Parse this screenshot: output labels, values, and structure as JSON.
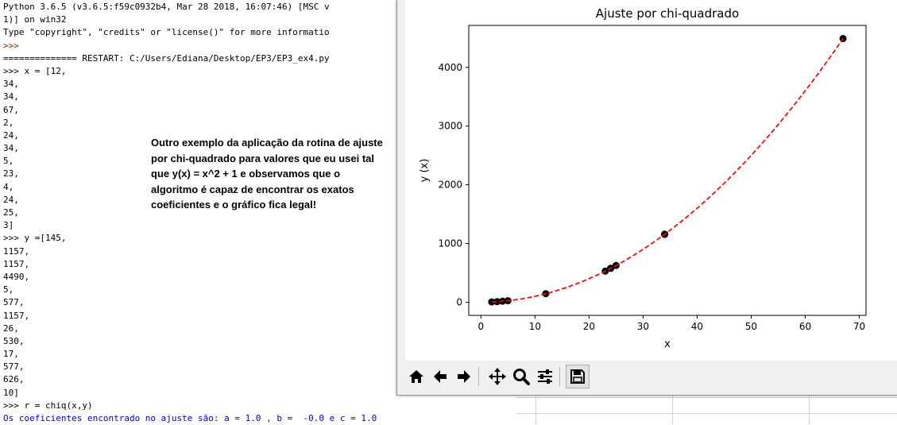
{
  "console": {
    "lines": [
      {
        "text": "Python 3.6.5 (v3.6.5:f59c0932b4, Mar 28 2018, 16:07:46) [MSC v",
        "cls": ""
      },
      {
        "text": "1)] on win32",
        "cls": ""
      },
      {
        "text": "Type \"copyright\", \"credits\" or \"license()\" for more informatio",
        "cls": ""
      },
      {
        "text": ">>> ",
        "cls": "prompt"
      },
      {
        "text": "============== RESTART: C:/Users/Ediana/Desktop/EP3/EP3_ex4.py",
        "cls": "restart"
      },
      {
        "text": ">>> x = [12,",
        "cls": ""
      },
      {
        "text": "34,",
        "cls": ""
      },
      {
        "text": "34,",
        "cls": ""
      },
      {
        "text": "67,",
        "cls": ""
      },
      {
        "text": "2,",
        "cls": ""
      },
      {
        "text": "24,",
        "cls": ""
      },
      {
        "text": "34,",
        "cls": ""
      },
      {
        "text": "5,",
        "cls": ""
      },
      {
        "text": "23,",
        "cls": ""
      },
      {
        "text": "4,",
        "cls": ""
      },
      {
        "text": "24,",
        "cls": ""
      },
      {
        "text": "25,",
        "cls": ""
      },
      {
        "text": "3]",
        "cls": ""
      },
      {
        "text": ">>> y =[145,",
        "cls": ""
      },
      {
        "text": "1157,",
        "cls": ""
      },
      {
        "text": "1157,",
        "cls": ""
      },
      {
        "text": "4490,",
        "cls": ""
      },
      {
        "text": "5,",
        "cls": ""
      },
      {
        "text": "577,",
        "cls": ""
      },
      {
        "text": "1157,",
        "cls": ""
      },
      {
        "text": "26,",
        "cls": ""
      },
      {
        "text": "530,",
        "cls": ""
      },
      {
        "text": "17,",
        "cls": ""
      },
      {
        "text": "577,",
        "cls": ""
      },
      {
        "text": "626,",
        "cls": ""
      },
      {
        "text": "10]",
        "cls": ""
      },
      {
        "text": ">>> r = chiq(x,y)",
        "cls": ""
      },
      {
        "text": "Os coeficientes encontrado no ajuste são: a = 1.0 , b =  -0.0 e c = 1.0",
        "cls": "blue"
      }
    ],
    "annotation": "Outro exemplo da aplicação da rotina de ajuste por chi-quadrado para valores que eu usei tal que y(x) = x^2 + 1 e observamos que o algoritmo é capaz de encontrar os exatos coeficientes e o gráfico fica legal!"
  },
  "figure": {
    "toolbar": {
      "home_icon": "home-icon",
      "back_icon": "back-arrow-icon",
      "forward_icon": "forward-arrow-icon",
      "pan_icon": "pan-icon",
      "zoom_icon": "zoom-icon",
      "configure_icon": "configure-subplots-icon",
      "save_icon": "save-icon"
    }
  },
  "chart_data": {
    "type": "scatter",
    "title": "Ajuste por chi-quadrado",
    "xlabel": "x",
    "ylabel": "y (x)",
    "xlim": [
      -2.25,
      71.25
    ],
    "ylim": [
      -224,
      4714
    ],
    "xticks": [
      0,
      10,
      20,
      30,
      40,
      50,
      60,
      70
    ],
    "yticks": [
      0,
      1000,
      2000,
      3000,
      4000
    ],
    "grid": false,
    "series": [
      {
        "kind": "points",
        "color": "#000000",
        "points": [
          [
            12,
            145
          ],
          [
            34,
            1157
          ],
          [
            34,
            1157
          ],
          [
            67,
            4490
          ],
          [
            2,
            5
          ],
          [
            24,
            577
          ],
          [
            34,
            1157
          ],
          [
            5,
            26
          ],
          [
            23,
            530
          ],
          [
            4,
            17
          ],
          [
            24,
            577
          ],
          [
            25,
            626
          ],
          [
            3,
            10
          ]
        ]
      },
      {
        "kind": "fit-curve",
        "style": "dashed",
        "color": "#ff0000",
        "function": "y = x^2 + 1",
        "x_range": [
          2,
          67
        ]
      }
    ]
  }
}
